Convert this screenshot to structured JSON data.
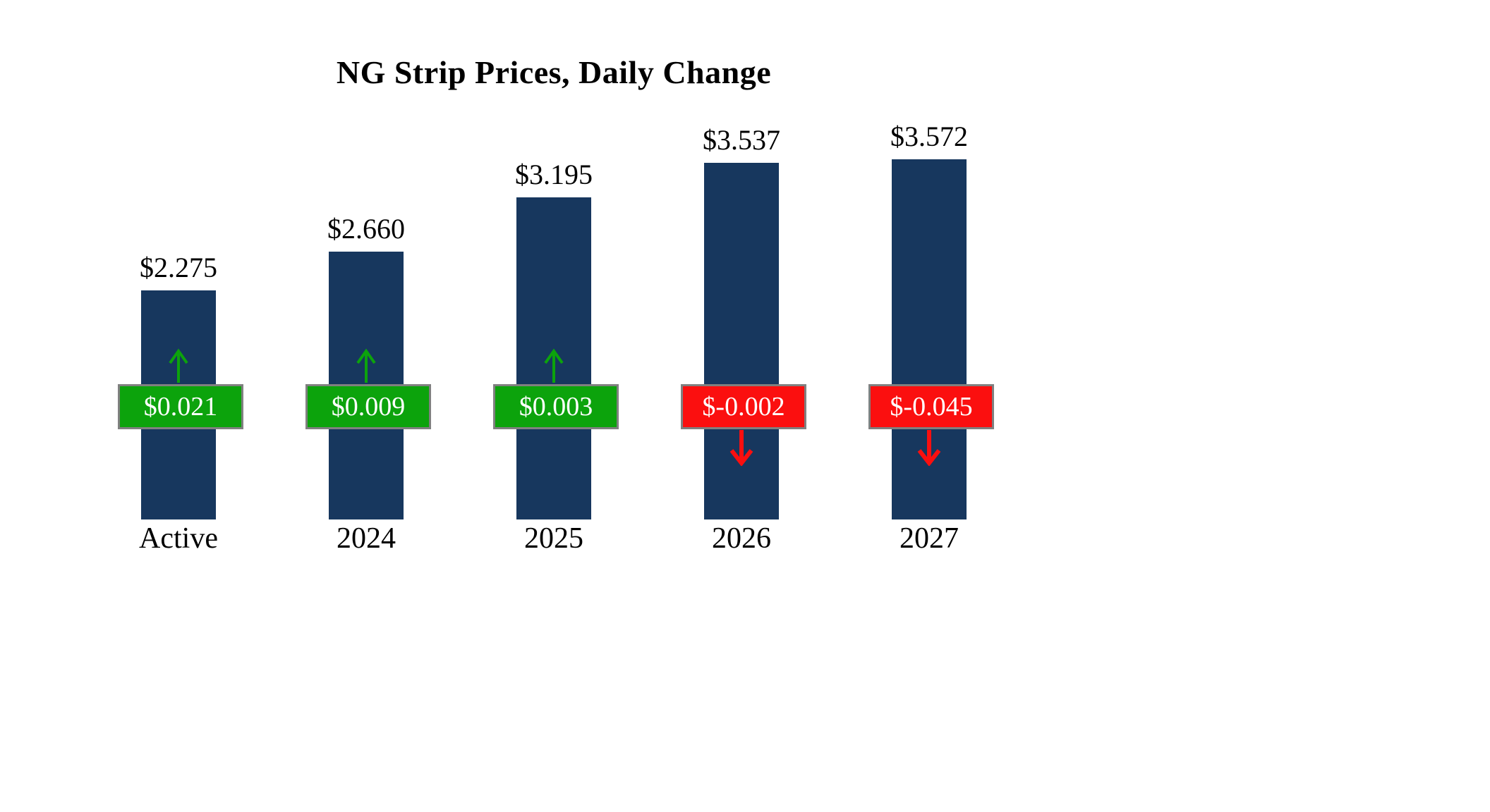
{
  "chart_data": {
    "type": "bar",
    "title": "NG Strip Prices, Daily Change",
    "categories": [
      "Active",
      "2024",
      "2025",
      "2026",
      "2027"
    ],
    "values": [
      2.275,
      2.66,
      3.195,
      3.537,
      3.572
    ],
    "value_labels": [
      "$2.275",
      "$2.660",
      "$3.195",
      "$3.537",
      "$3.572"
    ],
    "changes": [
      0.021,
      0.009,
      0.003,
      -0.002,
      -0.045
    ],
    "change_labels": [
      "$0.021",
      "$0.009",
      "$0.003",
      "$-0.002",
      "$-0.045"
    ],
    "ylim": [
      0,
      3.8
    ],
    "grid": false,
    "legend": "none",
    "colors": {
      "bar": "#17375e",
      "up": "#0ca30c",
      "down": "#fb0f0f",
      "box_border": "#808080",
      "change_text": "#ffffff",
      "title_text": "#000000"
    }
  }
}
